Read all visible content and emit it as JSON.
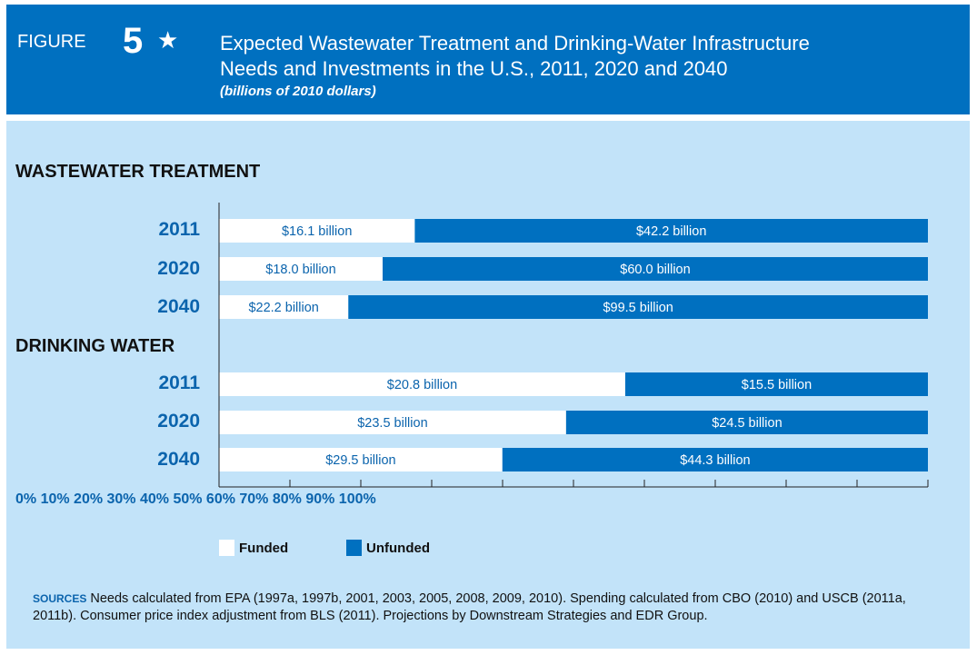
{
  "header": {
    "figure_word": "FIGURE",
    "figure_number": "5",
    "star": "★",
    "title_line1": "Expected Wastewater Treatment and Drinking-Water Infrastructure",
    "title_line2": "Needs and Investments in the U.S., 2011, 2020 and 2040",
    "subtitle": "(billions of 2010 dollars)"
  },
  "axis_ticks_text": "0% 10% 20% 30% 40% 50% 60% 70% 80% 90% 100%",
  "legend": {
    "funded": "Funded",
    "unfunded": "Unfunded"
  },
  "sources": {
    "label": "SOURCES",
    "text": "Needs calculated from EPA (1997a, 1997b, 2001, 2003, 2005, 2008, 2009, 2010). Spending calculated from CBO (2010) and USCB (2011a, 2011b). Consumer price index adjustment from BLS (2011). Projections by Downstream Strategies and EDR Group."
  },
  "colors": {
    "header": "#0070c0",
    "panel": "#c2e3f9",
    "funded": "#ffffff",
    "unfunded": "#0070c0",
    "label_blue": "#0b64ad"
  },
  "chart_data": {
    "type": "bar",
    "orientation": "horizontal",
    "stacked": "percent",
    "title": "Expected Wastewater Treatment and Drinking-Water Infrastructure Needs and Investments in the U.S., 2011, 2020 and 2040",
    "subtitle": "(billions of 2010 dollars)",
    "xlim": [
      0,
      100
    ],
    "x_tick_labels": [
      "0%",
      "10%",
      "20%",
      "30%",
      "40%",
      "50%",
      "60%",
      "70%",
      "80%",
      "90%",
      "100%"
    ],
    "legend_position": "bottom",
    "groups": [
      {
        "name": "WASTEWATER TREATMENT",
        "categories": [
          "2011",
          "2020",
          "2040"
        ],
        "series": [
          {
            "name": "Funded",
            "values": [
              16.1,
              18.0,
              22.2
            ],
            "labels": [
              "$16.1 billion",
              "$18.0 billion",
              "$22.2 billion"
            ]
          },
          {
            "name": "Unfunded",
            "values": [
              42.2,
              60.0,
              99.5
            ],
            "labels": [
              "$42.2 billion",
              "$60.0 billion",
              "$99.5 billion"
            ]
          }
        ]
      },
      {
        "name": "DRINKING WATER",
        "categories": [
          "2011",
          "2020",
          "2040"
        ],
        "series": [
          {
            "name": "Funded",
            "values": [
              20.8,
              23.5,
              29.5
            ],
            "labels": [
              "$20.8 billion",
              "$23.5 billion",
              "$29.5 billion"
            ]
          },
          {
            "name": "Unfunded",
            "values": [
              15.5,
              24.5,
              44.3
            ],
            "labels": [
              "$15.5 billion",
              "$24.5 billion",
              "$44.3 billion"
            ]
          }
        ]
      }
    ]
  }
}
